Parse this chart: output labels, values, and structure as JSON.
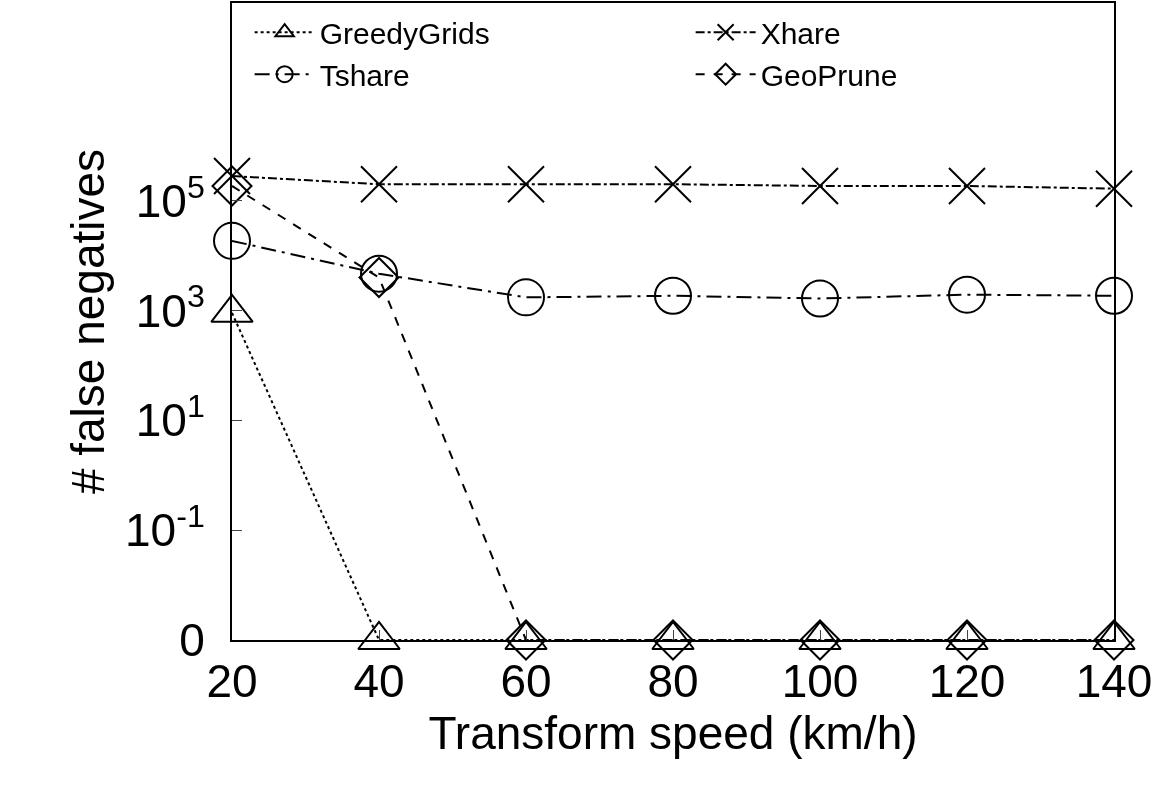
{
  "chart_data": {
    "type": "line",
    "xlabel": "Transform speed (km/h)",
    "ylabel": "# false negatives",
    "x": [
      20,
      40,
      60,
      80,
      100,
      120,
      140
    ],
    "series": [
      {
        "name": "GreedyGrids",
        "color": "#000000",
        "marker": "triangle",
        "line_style": "dotted",
        "values": [
          910,
          0.001,
          0.001,
          0.001,
          0.001,
          0.001,
          0.001
        ]
      },
      {
        "name": "Xhare",
        "color": "#000000",
        "marker": "cross",
        "line_style": "dashdot",
        "values": [
          282000,
          200000,
          200000,
          200000,
          186000,
          186000,
          166000
        ]
      },
      {
        "name": "Tshare",
        "color": "#000000",
        "marker": "circle",
        "line_style": "longdashdot",
        "values": [
          18600,
          4700,
          1740,
          1860,
          1660,
          1950,
          1860
        ]
      },
      {
        "name": "GeoPrune",
        "color": "#000000",
        "marker": "diamond",
        "line_style": "dashed",
        "values": [
          186000,
          4000,
          0.001,
          0.001,
          0.001,
          0.001,
          0.001
        ]
      }
    ],
    "log": "y",
    "xlim": [
      20,
      140
    ],
    "xticks": [
      20,
      40,
      60,
      80,
      100,
      120,
      140
    ],
    "ylim": [
      0.001,
      400000000
    ],
    "yticks": [
      {
        "value": 0.001,
        "label": "0"
      },
      {
        "value": 0.1,
        "label": "10$^{-1}$"
      },
      {
        "value": 10,
        "label": "10$^{1}$"
      },
      {
        "value": 1000,
        "label": "10$^{3}$"
      },
      {
        "value": 100000,
        "label": "10$^{5}$"
      }
    ],
    "grid": false,
    "legend": "top"
  }
}
